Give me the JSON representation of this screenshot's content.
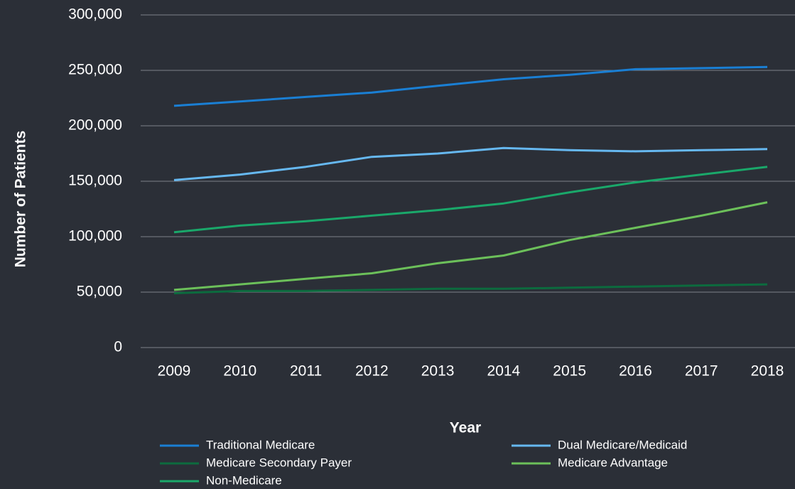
{
  "chart_data": {
    "type": "line",
    "x_label": "Year",
    "y_label": "Number of Patients",
    "categories": [
      "2009",
      "2010",
      "2011",
      "2012",
      "2013",
      "2014",
      "2015",
      "2016",
      "2017",
      "2018"
    ],
    "series": [
      {
        "name": "Traditional Medicare",
        "color": "#1a7fd4",
        "values": [
          218000,
          222000,
          226000,
          230000,
          236000,
          242000,
          246000,
          251000,
          252000,
          253000
        ]
      },
      {
        "name": "Dual Medicare/Medicaid",
        "color": "#66b8f0",
        "values": [
          151000,
          156000,
          163000,
          172000,
          175000,
          180000,
          178000,
          177000,
          178000,
          179000
        ]
      },
      {
        "name": "Medicare Secondary Payer",
        "color": "#0c6b3e",
        "values": [
          49000,
          51000,
          51000,
          52000,
          53000,
          53000,
          54000,
          55000,
          56000,
          57000
        ]
      },
      {
        "name": "Medicare Advantage",
        "color": "#6cc05a",
        "values": [
          52000,
          57000,
          62000,
          67000,
          76000,
          83000,
          97000,
          108000,
          119000,
          131000
        ]
      },
      {
        "name": "Non-Medicare",
        "color": "#1aa86a",
        "values": [
          104000,
          110000,
          114000,
          119000,
          124000,
          130000,
          140000,
          149000,
          156000,
          163000
        ]
      }
    ],
    "ylim": [
      0,
      300000
    ],
    "yticks": [
      0,
      {
        "value": 50000,
        "label": "50,000"
      },
      {
        "value": 100000,
        "label": "100,000"
      },
      {
        "value": 150000,
        "label": "150,000"
      },
      {
        "value": 200000,
        "label": "200,000"
      },
      {
        "value": 250000,
        "label": "250,000"
      },
      {
        "value": 300000,
        "label": "300,000"
      }
    ],
    "grid": true,
    "legend": "bottom"
  }
}
